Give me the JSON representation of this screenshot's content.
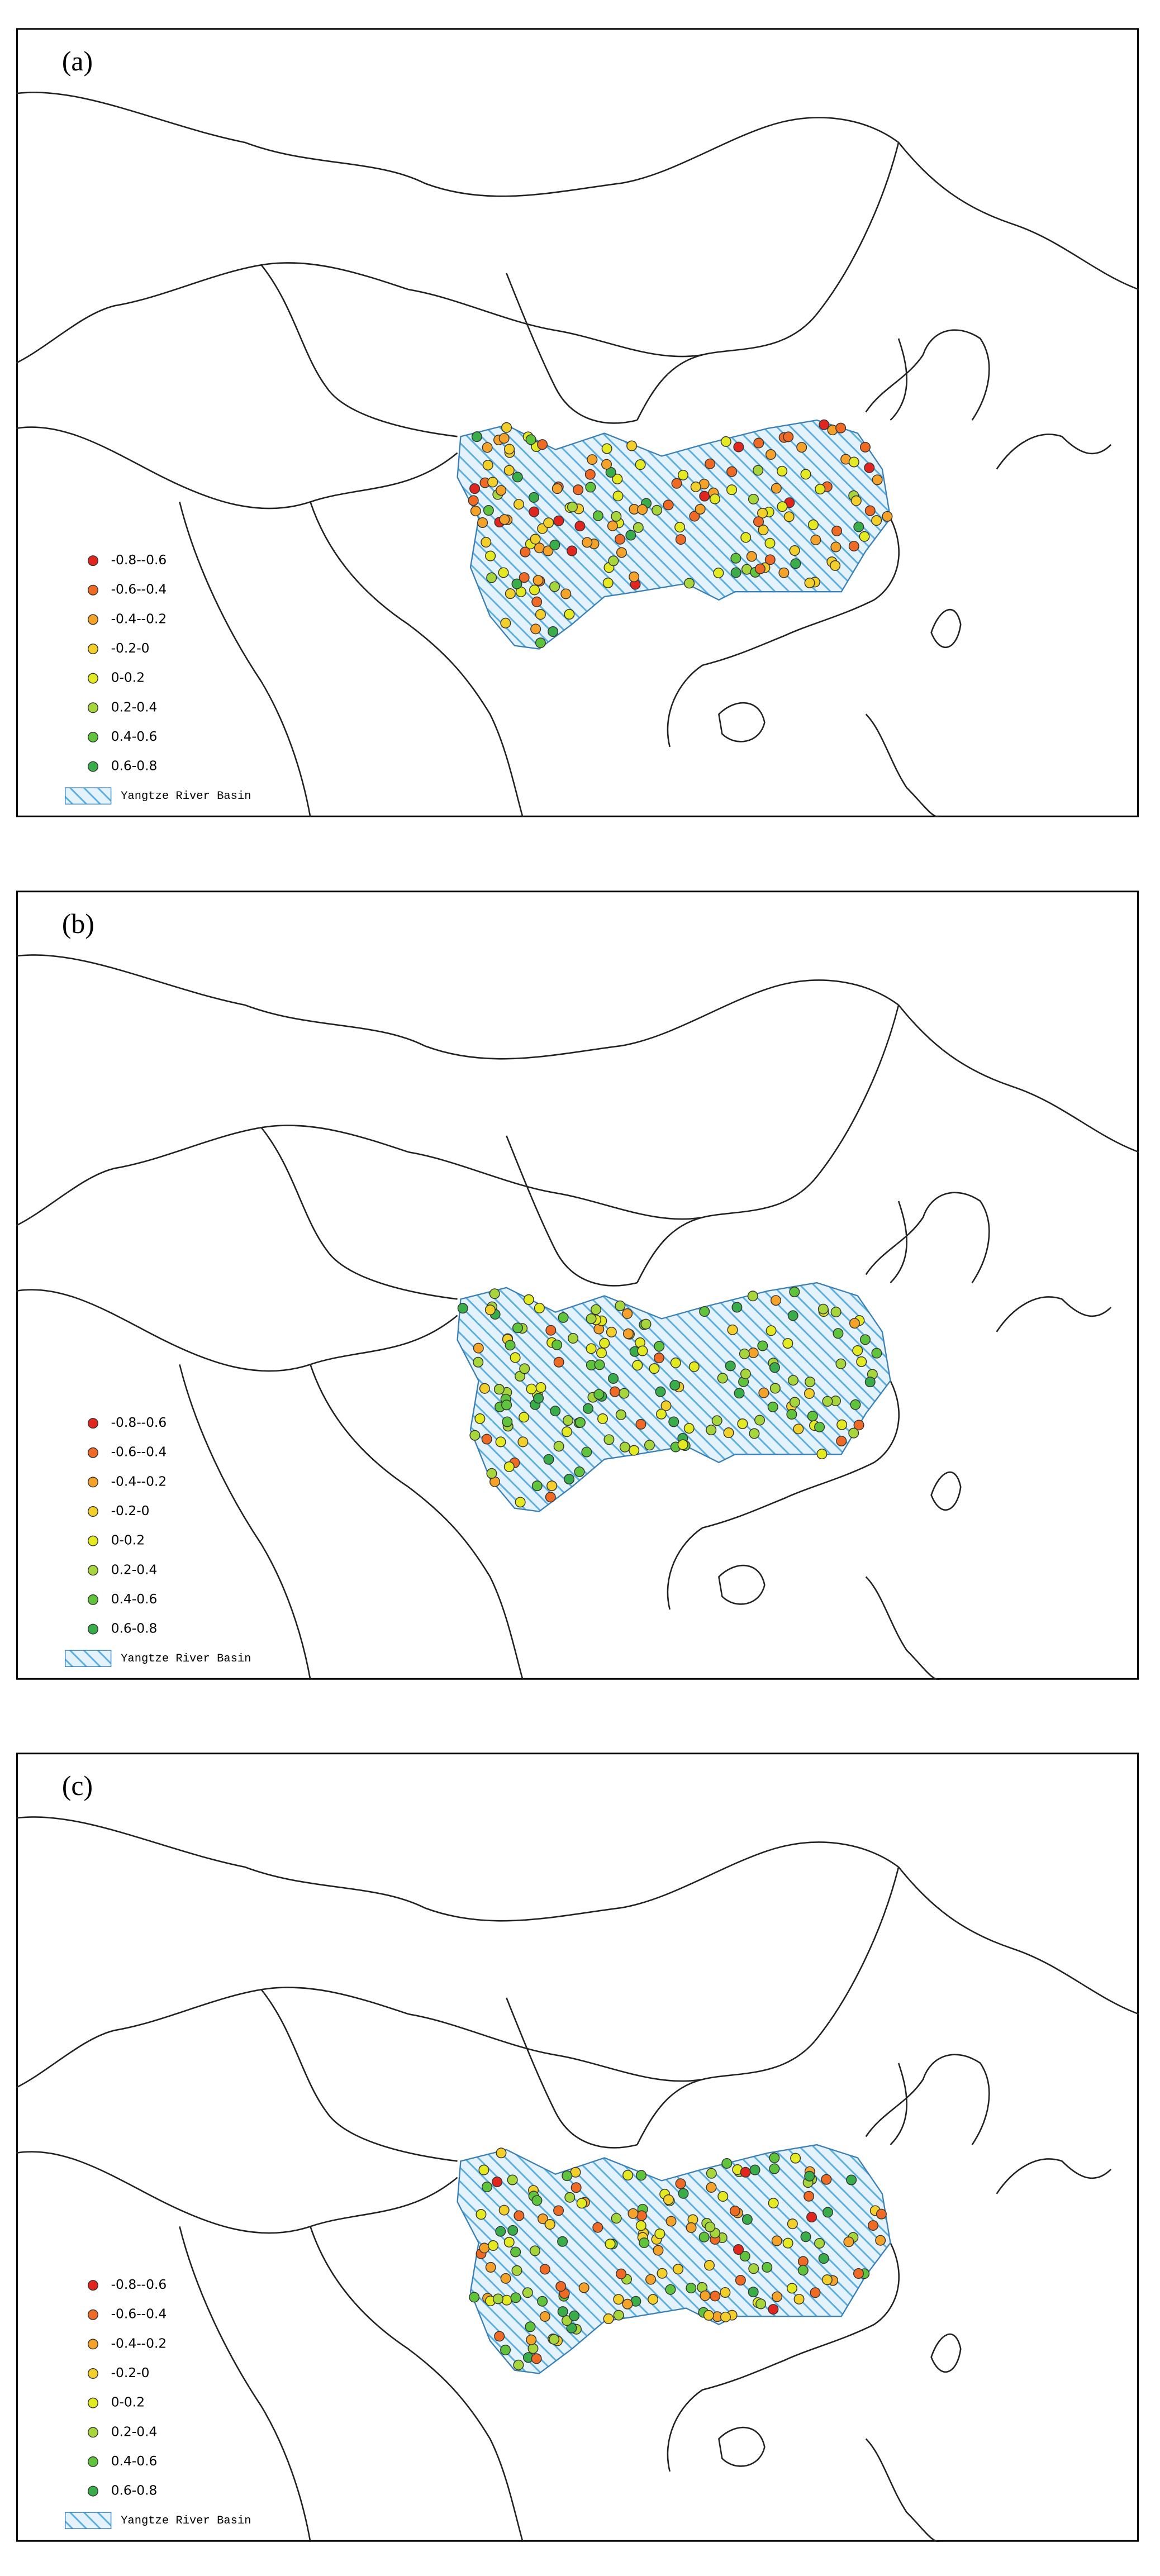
{
  "panels": [
    {
      "label": "(a)"
    },
    {
      "label": "(b)"
    },
    {
      "label": "(c)"
    }
  ],
  "legend": {
    "items": [
      {
        "label": "-0.8--0.6",
        "color": "#e0261e"
      },
      {
        "label": "-0.6--0.4",
        "color": "#ef6a24"
      },
      {
        "label": "-0.4--0.2",
        "color": "#f4a22a"
      },
      {
        "label": "-0.2-0",
        "color": "#f2cf2a"
      },
      {
        "label": "0-0.2",
        "color": "#e4ea22"
      },
      {
        "label": "0.2-0.4",
        "color": "#a6d63c"
      },
      {
        "label": "0.4-0.6",
        "color": "#5fc43c"
      },
      {
        "label": "0.6-0.8",
        "color": "#38ad4a"
      }
    ],
    "basin": "Yangtze River Basin",
    "basin_color": "#5aaee0"
  }
}
